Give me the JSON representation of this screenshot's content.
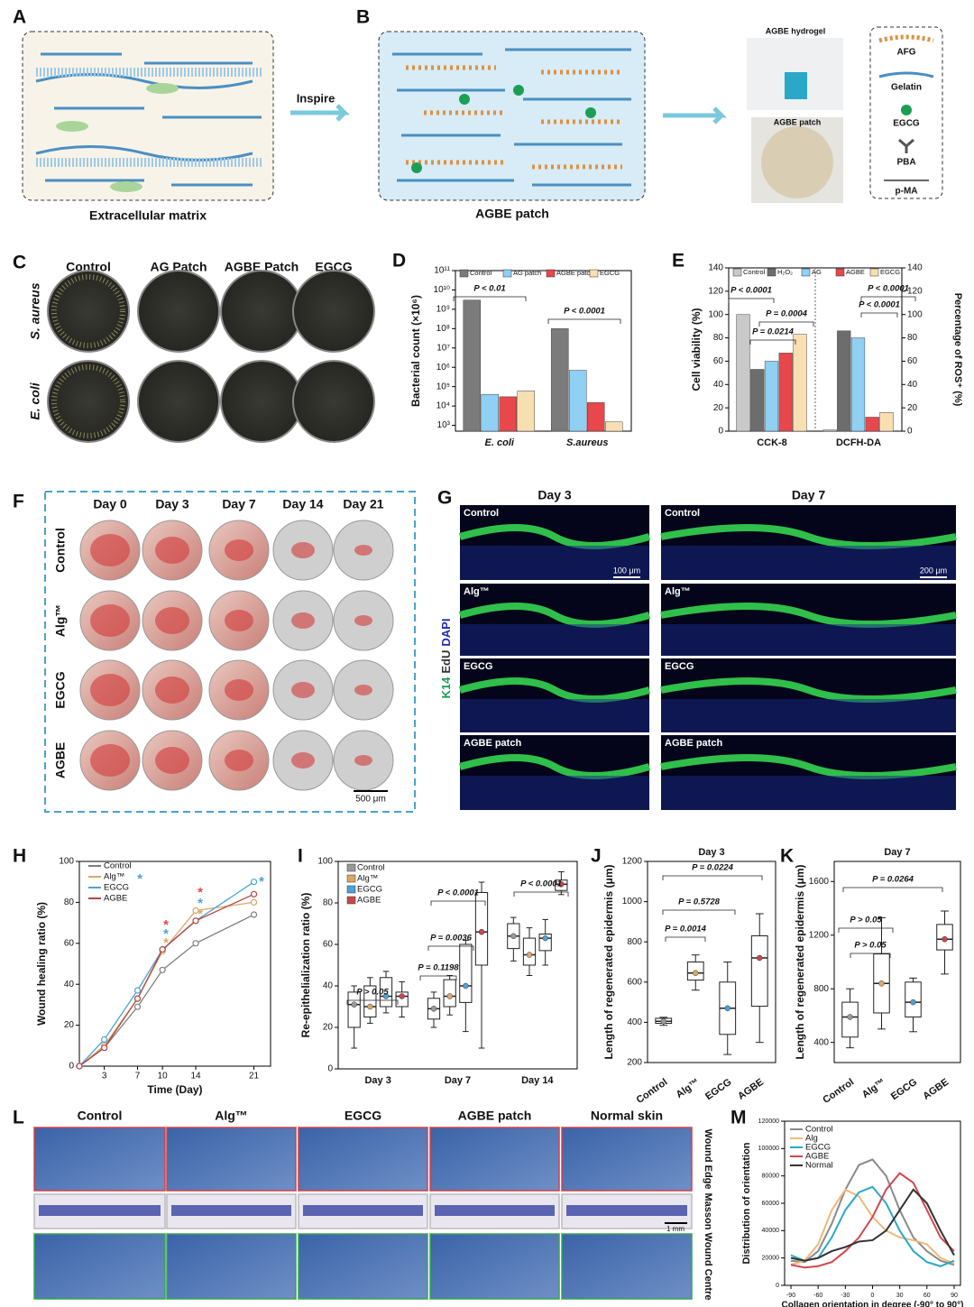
{
  "panels": {
    "A": {
      "letter": "A",
      "caption": "Extracellular matrix"
    },
    "B": {
      "letter": "B",
      "arrow": "Inspire",
      "caption": "AGBE patch",
      "photo1": "AGBE hydrogel",
      "photo2": "AGBE patch",
      "legend": [
        "AFG",
        "Gelatin",
        "EGCG",
        "PBA",
        "p-MA"
      ]
    },
    "C": {
      "letter": "C",
      "columns": [
        "Control",
        "AG Patch",
        "AGBE Patch",
        "EGCG"
      ],
      "rows": [
        "S. aureus",
        "E. coli"
      ]
    },
    "F": {
      "letter": "F",
      "columns": [
        "Day 0",
        "Day 3",
        "Day 7",
        "Day 14",
        "Day 21"
      ],
      "rows": [
        "Control",
        "Alg™",
        "EGCG",
        "AGBE"
      ],
      "scale": "500 μm"
    },
    "G": {
      "letter": "G",
      "columns": [
        "Day 3",
        "Day 7"
      ],
      "rows": [
        "Control",
        "Alg™",
        "EGCG",
        "AGBE patch"
      ],
      "stain": [
        "K14",
        "EdU",
        "DAPI"
      ],
      "scales": [
        "100 μm",
        "200 μm"
      ]
    },
    "L": {
      "letter": "L",
      "columns": [
        "Control",
        "Alg™",
        "EGCG",
        "AGBE patch",
        "Normal skin"
      ],
      "rows": [
        "Wound Edge",
        "Masson",
        "Wound Centre"
      ],
      "scale": "1 mm"
    }
  },
  "chart_data": [
    {
      "letter": "D",
      "type": "bar",
      "ylog": true,
      "y_label": "Bacterial count (×10⁶)",
      "categories": [
        "E. coli",
        "S.aureus"
      ],
      "series": [
        {
          "name": "Control",
          "color": "#7b7b7b",
          "values": [
            3000000000,
            100000000
          ]
        },
        {
          "name": "AG patch",
          "color": "#8fd0f4",
          "values": [
            40000,
            700000
          ]
        },
        {
          "name": "AGBE patch",
          "color": "#e8474c",
          "values": [
            30000,
            15000
          ]
        },
        {
          "name": "EGCG",
          "color": "#f8dfb2",
          "values": [
            60000,
            1500
          ]
        }
      ],
      "ylim": [
        500,
        100000000000
      ],
      "yticks": [
        {
          "value": 1000,
          "label": "10³"
        },
        {
          "value": 10000,
          "label": "10⁴"
        },
        {
          "value": 100000,
          "label": "10⁵"
        },
        {
          "value": 1000000,
          "label": "10⁶"
        },
        {
          "value": 10000000,
          "label": "10⁷"
        },
        {
          "value": 100000000,
          "label": "10⁸"
        },
        {
          "value": 1000000000,
          "label": "10⁹"
        },
        {
          "value": 10000000000,
          "label": "10¹⁰"
        },
        {
          "value": 100000000000,
          "label": "10¹¹"
        }
      ],
      "annotations": [
        {
          "text": "P < 0.01"
        },
        {
          "text": "P < 0.0001"
        }
      ]
    },
    {
      "letter": "E",
      "type": "bar",
      "y_label": "Cell viability (%)",
      "y2_label": "Percentage of ROS⁺ (%)",
      "categories": [
        "CCK-8",
        "DCFH-DA"
      ],
      "series": [
        {
          "name": "Control",
          "color": "#c9c9c9",
          "values": [
            100,
            1
          ]
        },
        {
          "name": "H₂O₂",
          "color": "#6d6d6d",
          "values": [
            53,
            86
          ]
        },
        {
          "name": "AG",
          "color": "#8fd0f4",
          "values": [
            60,
            80
          ]
        },
        {
          "name": "AGBE",
          "color": "#e8474c",
          "values": [
            67,
            12
          ]
        },
        {
          "name": "EGCG",
          "color": "#f8dfb2",
          "values": [
            83,
            16
          ]
        }
      ],
      "ylim": [
        0,
        140
      ],
      "yticks": [
        0,
        20,
        40,
        60,
        80,
        100,
        120,
        140
      ],
      "y2lim": [
        0,
        140
      ],
      "y2ticks": [
        0,
        20,
        40,
        60,
        80,
        100,
        120,
        140
      ],
      "annotations": [
        {
          "text": "P < 0.0001"
        },
        {
          "text": "P = 0.0004"
        },
        {
          "text": "P = 0.0214"
        },
        {
          "text": "P < 0.0001"
        },
        {
          "text": "P < 0.0001"
        }
      ]
    },
    {
      "letter": "H",
      "type": "line",
      "x_label": "Time (Day)",
      "y_label": "Wound healing ratio (%)",
      "x": [
        0,
        3,
        7,
        10,
        14,
        21
      ],
      "series": [
        {
          "name": "Control",
          "color": "#7f7f7f",
          "values": [
            0,
            9,
            29,
            47,
            60,
            74
          ]
        },
        {
          "name": "Alg™",
          "color": "#d9a86a",
          "values": [
            0,
            10,
            33,
            56,
            76,
            80
          ]
        },
        {
          "name": "EGCG",
          "color": "#4ba3d8",
          "values": [
            0,
            13,
            37,
            57,
            71,
            90
          ]
        },
        {
          "name": "AGBE",
          "color": "#b5443f",
          "values": [
            0,
            9,
            33,
            57,
            71,
            84
          ]
        }
      ],
      "xlim": [
        0,
        23
      ],
      "xticks": [
        3,
        7,
        10,
        14,
        21
      ],
      "ylim": [
        0,
        100
      ],
      "yticks": [
        0,
        20,
        40,
        60,
        80,
        100
      ],
      "annotations": [
        {
          "text": "*",
          "color": "#4ba3d8"
        },
        {
          "text": "*",
          "color": "#e8474c"
        },
        {
          "text": "*",
          "color": "#4ba3d8"
        },
        {
          "text": "*",
          "color": "#d9a86a"
        },
        {
          "text": "*",
          "color": "#e8474c"
        },
        {
          "text": "*",
          "color": "#4ba3d8"
        },
        {
          "text": "*",
          "color": "#d9a86a"
        },
        {
          "text": "*",
          "color": "#4ba3d8"
        }
      ]
    },
    {
      "letter": "I",
      "type": "box",
      "y_label": "Re-epithelialization ratio (%)",
      "categories": [
        "Day 3",
        "Day 7",
        "Day 14"
      ],
      "series": [
        {
          "name": "Control",
          "color": "#9a9a9a",
          "values": [
            [
              10,
              20,
              31,
              37,
              40
            ],
            [
              20,
              24,
              29,
              34,
              37
            ],
            [
              52,
              58,
              64,
              70,
              73
            ]
          ]
        },
        {
          "name": "Alg™",
          "color": "#d9a86a",
          "values": [
            [
              22,
              25,
              30,
              40,
              44
            ],
            [
              26,
              30,
              35,
              43,
              45
            ],
            [
              45,
              50,
              55,
              63,
              68
            ]
          ]
        },
        {
          "name": "EGCG",
          "color": "#4ba3d8",
          "values": [
            [
              27,
              30,
              35,
              44,
              47
            ],
            [
              18,
              32,
              40,
              60,
              62
            ],
            [
              50,
              57,
              63,
              65,
              72
            ]
          ]
        },
        {
          "name": "AGBE",
          "color": "#c9474a",
          "values": [
            [
              25,
              30,
              35,
              37,
              42
            ],
            [
              10,
              50,
              66,
              85,
              90
            ],
            [
              84,
              86,
              89,
              91,
              95
            ]
          ]
        }
      ],
      "ylim": [
        0,
        100
      ],
      "yticks": [
        0,
        20,
        40,
        60,
        80,
        100
      ],
      "annotations": [
        {
          "text": "P > 0.05"
        },
        {
          "text": "P = 0.1198"
        },
        {
          "text": "P = 0.0036"
        },
        {
          "text": "P < 0.0001"
        },
        {
          "text": "P < 0.0001"
        }
      ]
    },
    {
      "letter": "J",
      "type": "box",
      "title": "Day 3",
      "y_label": "Length of regenerated epidermis (μm)",
      "categories": [
        "Control",
        "Alg™",
        "EGCG",
        "AGBE"
      ],
      "colors": [
        "#9a9a9a",
        "#d9a86a",
        "#4ba3d8",
        "#c9474a"
      ],
      "values": [
        [
          385,
          395,
          405,
          420,
          425
        ],
        [
          560,
          610,
          645,
          700,
          735
        ],
        [
          240,
          340,
          470,
          600,
          700
        ],
        [
          300,
          480,
          720,
          830,
          940
        ]
      ],
      "ylim": [
        200,
        1200
      ],
      "yticks": [
        200,
        400,
        600,
        800,
        1000,
        1200
      ],
      "annotations": [
        {
          "text": "P = 0.0014"
        },
        {
          "text": "P = 0.5728"
        },
        {
          "text": "P = 0.0224"
        }
      ]
    },
    {
      "letter": "K",
      "type": "box",
      "title": "Day 7",
      "y_label": "Length of regenerated epidermis (μm)",
      "categories": [
        "Control",
        "Alg™",
        "EGCG",
        "AGBE"
      ],
      "colors": [
        "#9a9a9a",
        "#d9a86a",
        "#4ba3d8",
        "#c9474a"
      ],
      "values": [
        [
          360,
          440,
          590,
          700,
          800
        ],
        [
          500,
          620,
          840,
          1060,
          1330
        ],
        [
          480,
          590,
          700,
          850,
          880
        ],
        [
          910,
          1090,
          1170,
          1280,
          1380
        ]
      ],
      "ylim": [
        250,
        1750
      ],
      "yticks": [
        400,
        800,
        1200,
        1600
      ],
      "annotations": [
        {
          "text": "P > 0.05"
        },
        {
          "text": "P > 0.05"
        },
        {
          "text": "P = 0.0264"
        }
      ]
    },
    {
      "letter": "M",
      "type": "line",
      "x_label": "Collagen orientation in degree (-90° to 90°)",
      "y_label": "Distribution of orientation",
      "x": [
        -90,
        -75,
        -60,
        -45,
        -30,
        -15,
        0,
        15,
        30,
        45,
        60,
        75,
        90
      ],
      "series": [
        {
          "name": "Control",
          "color": "#8a8a8a",
          "values": [
            18000,
            17000,
            25000,
            45000,
            70000,
            88000,
            92000,
            80000,
            55000,
            35000,
            25000,
            18000,
            15000
          ]
        },
        {
          "name": "Alg",
          "color": "#f0b87a",
          "values": [
            15000,
            18000,
            30000,
            55000,
            70000,
            65000,
            50000,
            40000,
            35000,
            33000,
            30000,
            20000,
            16000
          ]
        },
        {
          "name": "EGCG",
          "color": "#29a9c7",
          "values": [
            22000,
            18000,
            20000,
            35000,
            55000,
            68000,
            72000,
            60000,
            40000,
            25000,
            17000,
            14000,
            18000
          ]
        },
        {
          "name": "AGBE",
          "color": "#d4454c",
          "values": [
            15000,
            13000,
            14000,
            17000,
            25000,
            35000,
            50000,
            70000,
            82000,
            75000,
            55000,
            35000,
            25000
          ]
        },
        {
          "name": "Normal",
          "color": "#333333",
          "values": [
            20000,
            18000,
            20000,
            25000,
            28000,
            32000,
            33000,
            40000,
            55000,
            70000,
            60000,
            40000,
            22000
          ]
        }
      ],
      "xlim": [
        -97,
        97
      ],
      "xticks": [
        -90,
        -60,
        -30,
        0,
        30,
        60,
        90
      ],
      "ylim": [
        0,
        120000
      ],
      "yticks": [
        0,
        20000,
        40000,
        60000,
        80000,
        100000,
        120000
      ]
    }
  ]
}
